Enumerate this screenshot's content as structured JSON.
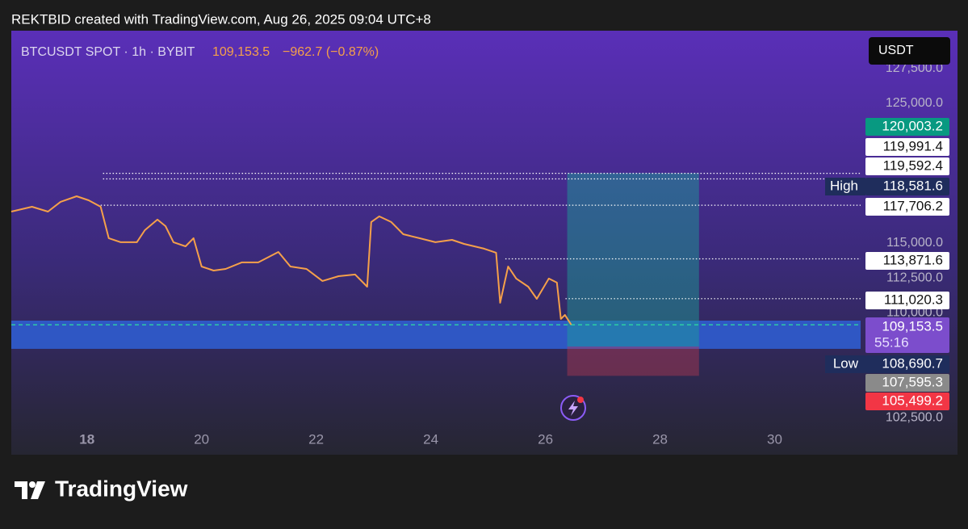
{
  "caption": "REKTBID created with TradingView.com, Aug 26, 2025 09:04 UTC+8",
  "brand": "TradingView",
  "chart_data": {
    "type": "line",
    "title": "BTCUSDT SPOT · 1h · BYBIT",
    "last_price": "109,153.5",
    "change": "−962.7 (−0.87%)",
    "currency": "USDT",
    "color": "#f5a04a",
    "x": [
      16.68,
      17.04,
      17.32,
      17.54,
      17.82,
      18.03,
      18.24,
      18.38,
      18.59,
      18.87,
      19.01,
      19.23,
      19.37,
      19.51,
      19.72,
      19.86,
      20.0,
      20.21,
      20.42,
      20.7,
      20.99,
      21.34,
      21.55,
      21.83,
      22.11,
      22.39,
      22.68,
      22.89,
      22.96,
      23.1,
      23.31,
      23.52,
      23.8,
      24.08,
      24.37,
      24.58,
      24.93,
      25.14,
      25.21,
      25.35,
      25.49,
      25.7,
      25.85,
      26.06,
      26.2,
      26.27,
      26.34,
      26.45
    ],
    "values": [
      117255,
      117600,
      117255,
      117950,
      118350,
      118060,
      117600,
      115350,
      115060,
      115060,
      115925,
      116680,
      116215,
      115060,
      114770,
      115350,
      113325,
      113035,
      113150,
      113615,
      113615,
      114365,
      113325,
      113150,
      112285,
      112630,
      112750,
      111880,
      116505,
      116910,
      116505,
      115635,
      115350,
      115060,
      115230,
      114940,
      114600,
      114310,
      110725,
      113325,
      112460,
      111880,
      111010,
      112460,
      112170,
      109570,
      109860,
      109160
    ],
    "xlim": [
      16.68,
      31.5
    ],
    "ylim": [
      99855,
      130200
    ],
    "xticks": [
      18,
      20,
      22,
      24,
      26,
      28,
      30
    ],
    "yticks": [
      {
        "value": 127500,
        "label": "127,500.0"
      },
      {
        "value": 125000,
        "label": "125,000.0"
      },
      {
        "value": 115000,
        "label": "115,000.0"
      },
      {
        "value": 112500,
        "label": "112,500.0"
      },
      {
        "value": 110000,
        "label": "110,000.0"
      },
      {
        "value": 102500,
        "label": "102,500.0"
      }
    ],
    "levels": [
      {
        "value": 119991.4,
        "label": "119,991.4",
        "from": 18.28
      },
      {
        "value": 119592.4,
        "label": "119,592.4",
        "from": 18.28
      },
      {
        "value": 117706.2,
        "label": "117,706.2",
        "from": 18.24
      },
      {
        "value": 113871.6,
        "label": "113,871.6",
        "from": 25.3
      },
      {
        "value": 111020.3,
        "label": "111,020.3",
        "from": 26.35
      }
    ],
    "high": {
      "tag": "High",
      "value": 118581.6,
      "label": "118,581.6"
    },
    "low": {
      "tag": "Low",
      "value": 108690.7,
      "label": "108,690.7"
    },
    "current": {
      "value": 109153.5,
      "label": "109,153.5",
      "countdown": "55:16"
    },
    "zone": {
      "low": 107430,
      "high": 109450,
      "color": "#2f5fd6"
    },
    "position": {
      "start": 26.38,
      "end": 28.68,
      "take_profit": {
        "value": 120003.2,
        "label": "120,003.2",
        "color": "#089981"
      },
      "entry": {
        "value": 107595.3,
        "label": "107,595.3",
        "color": "#8a8a8a"
      },
      "stop": {
        "value": 105499.2,
        "label": "105,499.2",
        "color": "#f23645"
      }
    }
  }
}
